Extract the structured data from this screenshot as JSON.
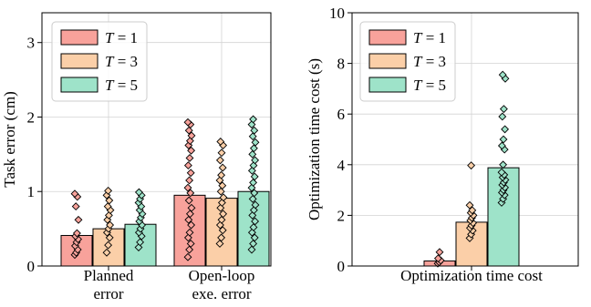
{
  "chart_data": [
    {
      "type": "bar",
      "ylabel": "Task error (cm)",
      "ylim": [
        0,
        3.4
      ],
      "yticks": [
        "0",
        "1",
        "2",
        "3"
      ],
      "categories": [
        [
          "Planned",
          " error"
        ],
        [
          "Open-loop",
          " exe. error"
        ]
      ],
      "grid": true,
      "legend_placement": "top-left",
      "series": [
        {
          "name": "T = 1",
          "color": "#f8a29b",
          "values": [
            0.41,
            0.95
          ],
          "points": [
            [
              0.15,
              0.18,
              0.22,
              0.27,
              0.32,
              0.36,
              0.4,
              0.44,
              0.62,
              0.8,
              0.93,
              0.97
            ],
            [
              0.12,
              0.22,
              0.3,
              0.38,
              0.45,
              0.55,
              0.62,
              0.7,
              0.78,
              0.88,
              0.98,
              1.05,
              1.15,
              1.25,
              1.35,
              1.45,
              1.55,
              1.62,
              1.68,
              1.75,
              1.82,
              1.9,
              1.93
            ]
          ]
        },
        {
          "name": "T = 3",
          "color": "#fbcfa8",
          "values": [
            0.5,
            0.91
          ],
          "points": [
            [
              0.18,
              0.28,
              0.38,
              0.45,
              0.5,
              0.55,
              0.62,
              0.68,
              0.75,
              0.8,
              0.88,
              0.95,
              1.01
            ],
            [
              0.3,
              0.38,
              0.48,
              0.55,
              0.62,
              0.7,
              0.78,
              0.85,
              0.92,
              1.0,
              1.08,
              1.15,
              1.22,
              1.32,
              1.42,
              1.52,
              1.62,
              1.67
            ]
          ]
        },
        {
          "name": "T = 5",
          "color": "#9ee3c9",
          "values": [
            0.56,
            1.0
          ],
          "points": [
            [
              0.25,
              0.32,
              0.4,
              0.45,
              0.5,
              0.55,
              0.6,
              0.65,
              0.7,
              0.75,
              0.8,
              0.85,
              0.9,
              0.95,
              0.99
            ],
            [
              0.22,
              0.3,
              0.38,
              0.45,
              0.52,
              0.6,
              0.68,
              0.75,
              0.82,
              0.9,
              0.98,
              1.05,
              1.12,
              1.2,
              1.28,
              1.35,
              1.42,
              1.5,
              1.58,
              1.66,
              1.74,
              1.82,
              1.9,
              1.97
            ]
          ]
        }
      ]
    },
    {
      "type": "bar",
      "ylabel": "Optimization time cost (s)",
      "ylim": [
        0,
        10
      ],
      "yticks": [
        "0",
        "2",
        "4",
        "6",
        "8",
        "10"
      ],
      "categories": [
        [
          "Optimization time cost"
        ]
      ],
      "grid": true,
      "legend_placement": "top-left",
      "series": [
        {
          "name": "T = 1",
          "color": "#f8a29b",
          "values": [
            0.2
          ],
          "points": [
            [
              0.1,
              0.15,
              0.22,
              0.3,
              0.55
            ]
          ]
        },
        {
          "name": "T = 3",
          "color": "#fbcfa8",
          "values": [
            1.73
          ],
          "points": [
            [
              1.1,
              1.25,
              1.4,
              1.5,
              1.6,
              1.7,
              1.8,
              1.9,
              2.0,
              2.1,
              2.2,
              2.4,
              3.97
            ]
          ]
        },
        {
          "name": "T = 5",
          "color": "#9ee3c9",
          "values": [
            3.88
          ],
          "points": [
            [
              2.5,
              2.65,
              2.8,
              2.9,
              3.0,
              3.1,
              3.2,
              3.3,
              3.4,
              3.5,
              3.6,
              3.7,
              4.0,
              4.6,
              4.75,
              5.0,
              5.4,
              5.9,
              6.2,
              7.4,
              7.55
            ]
          ]
        }
      ]
    }
  ]
}
